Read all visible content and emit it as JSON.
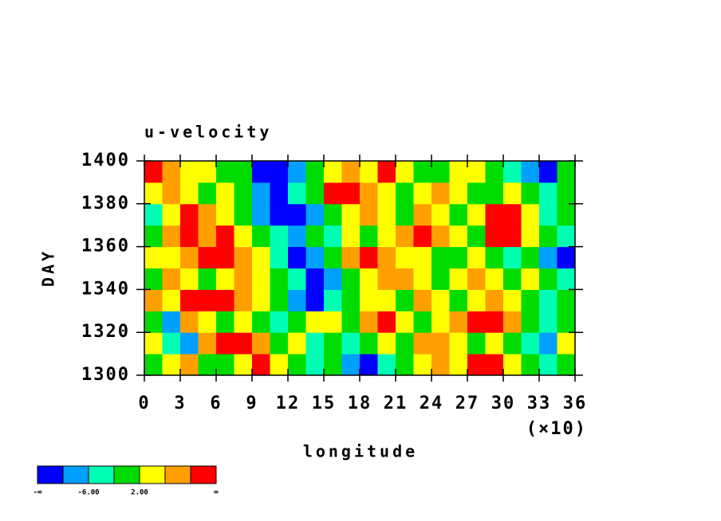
{
  "chart_data": {
    "type": "heatmap",
    "title": "u-velocity",
    "x_label": "longitude",
    "x_scale_note": "(×10)",
    "y_label": "DAY",
    "xlim": [
      0,
      360
    ],
    "ylim": [
      1300,
      1400
    ],
    "xticks": [
      {
        "value": 0,
        "label": "0"
      },
      {
        "value": 30,
        "label": "3"
      },
      {
        "value": 60,
        "label": "6"
      },
      {
        "value": 90,
        "label": "9"
      },
      {
        "value": 120,
        "label": "12"
      },
      {
        "value": 150,
        "label": "15"
      },
      {
        "value": 180,
        "label": "18"
      },
      {
        "value": 210,
        "label": "21"
      },
      {
        "value": 240,
        "label": "24"
      },
      {
        "value": 270,
        "label": "27"
      },
      {
        "value": 300,
        "label": "30"
      },
      {
        "value": 330,
        "label": "33"
      },
      {
        "value": 360,
        "label": "36"
      }
    ],
    "yticks": [
      1300,
      1320,
      1340,
      1360,
      1380,
      1400
    ],
    "colors": [
      "#0000fe",
      "#00a0ff",
      "#00ffb4",
      "#00dc00",
      "#ffff00",
      "#ffa000",
      "#ff0000"
    ],
    "colorbar_labels": [
      {
        "boundary": 0,
        "label": "-∞"
      },
      {
        "boundary": 2,
        "label": "-6.00"
      },
      {
        "boundary": 4,
        "label": "2.00"
      },
      {
        "boundary": 7,
        "label": "∞"
      }
    ],
    "z": [
      [
        3,
        4,
        5,
        3,
        3,
        4,
        6,
        4,
        3,
        2,
        3,
        1,
        0,
        2,
        3,
        4,
        5,
        4,
        6,
        6,
        4,
        3,
        2,
        3
      ],
      [
        4,
        2,
        1,
        5,
        6,
        6,
        5,
        3,
        4,
        2,
        3,
        2,
        3,
        4,
        3,
        5,
        5,
        4,
        3,
        4,
        3,
        2,
        1,
        4
      ],
      [
        3,
        1,
        5,
        4,
        3,
        4,
        3,
        2,
        3,
        4,
        4,
        3,
        5,
        6,
        4,
        3,
        4,
        5,
        6,
        6,
        5,
        3,
        2,
        3
      ],
      [
        5,
        4,
        6,
        6,
        6,
        5,
        4,
        3,
        1,
        0,
        2,
        3,
        4,
        4,
        3,
        5,
        4,
        3,
        4,
        5,
        4,
        3,
        2,
        3
      ],
      [
        3,
        5,
        4,
        3,
        4,
        5,
        4,
        3,
        2,
        0,
        1,
        3,
        4,
        5,
        5,
        4,
        3,
        4,
        5,
        4,
        3,
        4,
        3,
        2
      ],
      [
        4,
        4,
        5,
        6,
        6,
        5,
        4,
        2,
        0,
        1,
        3,
        5,
        6,
        5,
        4,
        4,
        3,
        3,
        4,
        3,
        2,
        3,
        1,
        0
      ],
      [
        3,
        5,
        6,
        5,
        6,
        4,
        3,
        2,
        1,
        3,
        2,
        4,
        3,
        4,
        5,
        6,
        5,
        4,
        3,
        6,
        6,
        4,
        3,
        2
      ],
      [
        2,
        4,
        6,
        5,
        4,
        3,
        1,
        0,
        0,
        1,
        3,
        4,
        5,
        4,
        3,
        5,
        4,
        3,
        4,
        6,
        6,
        4,
        2,
        3
      ],
      [
        4,
        5,
        4,
        3,
        4,
        3,
        1,
        0,
        2,
        3,
        6,
        6,
        5,
        4,
        3,
        4,
        5,
        4,
        3,
        3,
        4,
        3,
        2,
        3
      ],
      [
        6,
        5,
        4,
        4,
        3,
        3,
        0,
        0,
        1,
        3,
        4,
        5,
        4,
        6,
        4,
        3,
        3,
        4,
        4,
        3,
        2,
        1,
        0,
        3
      ]
    ]
  }
}
